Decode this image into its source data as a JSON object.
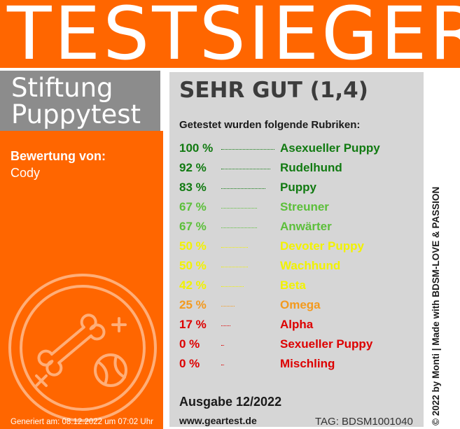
{
  "banner": {
    "title": "TESTSIEGER"
  },
  "brand": {
    "line1": "Stiftung",
    "line2": "Puppytest"
  },
  "reviewer": {
    "label": "Bewertung von:",
    "name": "Cody"
  },
  "emblem": {
    "icons": [
      "bone-icon",
      "ball-icon",
      "x-mark-icon",
      "plus-mark-icon"
    ]
  },
  "generated": "Generiert am: 08.12.2022 um 07:02 Uhr",
  "grade": "SEHR GUT (1,4)",
  "subtitle": "Getestet wurden folgende Rubriken:",
  "ratings": [
    {
      "percent": "100 %",
      "value": 100,
      "category": "Asexueller Puppy",
      "color": "#117a11"
    },
    {
      "percent": "92 %",
      "value": 92,
      "category": "Rudelhund",
      "color": "#117a11"
    },
    {
      "percent": "83 %",
      "value": 83,
      "category": "Puppy",
      "color": "#117a11"
    },
    {
      "percent": "67 %",
      "value": 67,
      "category": "Streuner",
      "color": "#5cbf3a"
    },
    {
      "percent": "67 %",
      "value": 67,
      "category": "Anwärter",
      "color": "#5cbf3a"
    },
    {
      "percent": "50 %",
      "value": 50,
      "category": "Devoter Puppy",
      "color": "#f2f200"
    },
    {
      "percent": "50 %",
      "value": 50,
      "category": "Wachhund",
      "color": "#f2f200"
    },
    {
      "percent": "42 %",
      "value": 42,
      "category": "Beta",
      "color": "#f2f200"
    },
    {
      "percent": "25 %",
      "value": 25,
      "category": "Omega",
      "color": "#f39a1e"
    },
    {
      "percent": "17 %",
      "value": 17,
      "category": "Alpha",
      "color": "#dd0000"
    },
    {
      "percent": "0 %",
      "value": 0,
      "category": "Sexueller Puppy",
      "color": "#dd0000"
    },
    {
      "percent": "0 %",
      "value": 0,
      "category": "Mischling",
      "color": "#dd0000"
    }
  ],
  "issue": "Ausgabe 12/2022",
  "website": "www.geartest.de",
  "tag": "TAG: BDSM1001040",
  "copyright": "© 2022 by Monti | Made with BDSM-LOVE & PASSION",
  "colors": {
    "orange": "#ff6600",
    "gray_box": "#8c8c8c",
    "panel": "#d6d6d6"
  }
}
